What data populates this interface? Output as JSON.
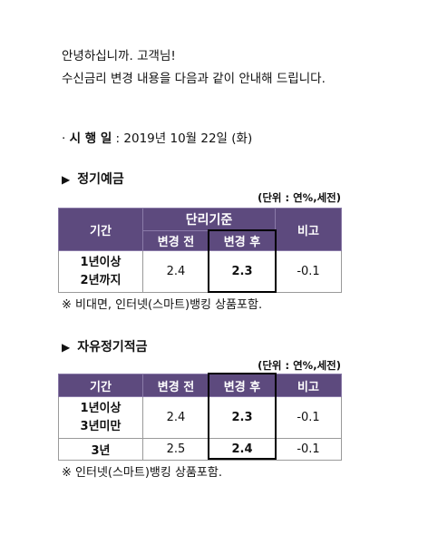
{
  "greeting": "안녕하십니까. 고객님!",
  "intro": "수신금리 변경 내용을 다음과 같이 안내해 드립니다.",
  "effective": {
    "bullet": "·",
    "label": "시 행 일",
    "sep": " : ",
    "date": "2019년 10월 22일 (화)"
  },
  "section1": {
    "marker": "▶",
    "title": "정기예금",
    "unit": "(단위 : 연%,세전)",
    "headers": {
      "period": "기간",
      "group": "단리기준",
      "before": "변경 전",
      "after": "변경 후",
      "note": "비고"
    },
    "rows": [
      {
        "period_line1": "1년이상",
        "period_line2": "2년까지",
        "before": "2.4",
        "after": "2.3",
        "note": "-0.1"
      }
    ],
    "footnote": "※ 비대면, 인터넷(스마트)뱅킹 상품포함."
  },
  "section2": {
    "marker": "▶",
    "title": "자유정기적금",
    "unit": "(단위 : 연%,세전)",
    "headers": {
      "period": "기간",
      "before": "변경 전",
      "after": "변경 후",
      "note": "비고"
    },
    "rows": [
      {
        "period_line1": "1년이상",
        "period_line2": "3년미만",
        "before": "2.4",
        "after": "2.3",
        "note": "-0.1"
      },
      {
        "period_line1": "3년",
        "period_line2": "",
        "before": "2.5",
        "after": "2.4",
        "note": "-0.1"
      }
    ],
    "footnote": "※ 인터넷(스마트)뱅킹 상품포함."
  }
}
